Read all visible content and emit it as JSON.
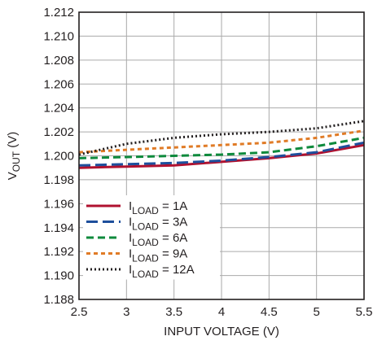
{
  "chart_data": {
    "type": "line",
    "title": "",
    "xlabel": "INPUT VOLTAGE (V)",
    "ylabel": {
      "main": "V",
      "sub": "OUT",
      "unit": " (V)"
    },
    "xlim": [
      2.5,
      5.5
    ],
    "ylim": [
      1.188,
      1.212
    ],
    "x_ticks": [
      2.5,
      3,
      3.5,
      4,
      4.5,
      5,
      5.5
    ],
    "x_tick_labels": [
      "2.5",
      "3",
      "3.5",
      "4",
      "4.5",
      "5",
      "5.5"
    ],
    "y_ticks": [
      1.188,
      1.19,
      1.192,
      1.194,
      1.196,
      1.198,
      1.2,
      1.202,
      1.204,
      1.206,
      1.208,
      1.21,
      1.212
    ],
    "y_tick_labels": [
      "1.188",
      "1.190",
      "1.192",
      "1.194",
      "1.196",
      "1.198",
      "1.200",
      "1.202",
      "1.204",
      "1.206",
      "1.208",
      "1.210",
      "1.212"
    ],
    "grid": true,
    "legend_position": "bottom-left",
    "series": [
      {
        "name": "1A",
        "legend": {
          "main": "I",
          "sub": "LOAD",
          "rest": " = 1A"
        },
        "color": "#b0112f",
        "dash": "solid",
        "x": [
          2.5,
          3,
          3.5,
          4,
          4.5,
          5,
          5.5
        ],
        "y": [
          1.199,
          1.1991,
          1.1992,
          1.1995,
          1.1998,
          1.2002,
          1.2009
        ]
      },
      {
        "name": "3A",
        "legend": {
          "main": "I",
          "sub": "LOAD",
          "rest": " = 3A"
        },
        "color": "#1e4f9c",
        "dash": "longdash",
        "x": [
          2.5,
          3,
          3.5,
          4,
          4.5,
          5,
          5.5
        ],
        "y": [
          1.1992,
          1.1993,
          1.1994,
          1.1996,
          1.1999,
          1.2003,
          1.2011
        ]
      },
      {
        "name": "6A",
        "legend": {
          "main": "I",
          "sub": "LOAD",
          "rest": " = 6A"
        },
        "color": "#0e8a3c",
        "dash": "dash",
        "x": [
          2.5,
          3,
          3.5,
          4,
          4.5,
          5,
          5.5
        ],
        "y": [
          1.1998,
          1.1999,
          1.2,
          1.2001,
          1.2003,
          1.2008,
          1.2015
        ]
      },
      {
        "name": "9A",
        "legend": {
          "main": "I",
          "sub": "LOAD",
          "rest": " = 9A"
        },
        "color": "#e07b26",
        "dash": "shortdash",
        "x": [
          2.5,
          3,
          3.5,
          4,
          4.5,
          5,
          5.5
        ],
        "y": [
          1.2003,
          1.2005,
          1.2007,
          1.2009,
          1.2011,
          1.2015,
          1.2021
        ]
      },
      {
        "name": "12A",
        "legend": {
          "main": "I",
          "sub": "LOAD",
          "rest": " = 12A"
        },
        "color": "#231f20",
        "dash": "dot",
        "x": [
          2.5,
          3,
          3.5,
          4,
          4.5,
          5,
          5.5
        ],
        "y": [
          1.2001,
          1.201,
          1.2015,
          1.2018,
          1.202,
          1.2023,
          1.2029
        ]
      }
    ]
  }
}
